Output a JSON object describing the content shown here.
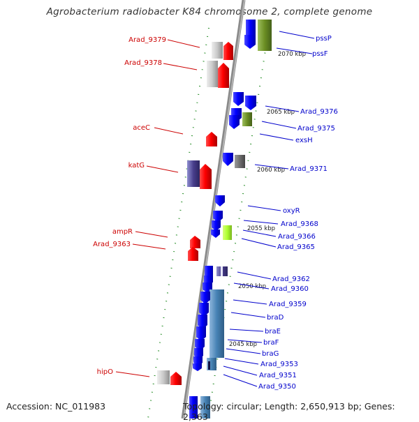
{
  "title": "Agrobacterium radiobacter K84 chromosome 2, complete genome",
  "footer": {
    "accession": "Accession: NC_011983",
    "topology": "Topology: circular; Length: 2,650,913 bp; Genes: 2,363"
  },
  "colors": {
    "left_label": "#cc0000",
    "right_label": "#0000cc",
    "backbone": "#8a8a8a",
    "tick": "#228b22",
    "cds_forward": "#ff0000",
    "cds_reverse": "#0000ff"
  },
  "kbp_markers": [
    "2070 kbp",
    "2065 kbp",
    "2060 kbp",
    "2055 kbp",
    "2050 kbp",
    "2045 kbp"
  ],
  "left_labels": [
    "Arad_9379",
    "Arad_9378",
    "aceC",
    "katG",
    "ampR",
    "Arad_9363",
    "hipO"
  ],
  "right_labels": [
    "pssP",
    "pssF",
    "Arad_9376",
    "Arad_9375",
    "exsH",
    "Arad_9371",
    "oxyR",
    "Arad_9368",
    "Arad_9366",
    "Arad_9365",
    "Arad_9362",
    "Arad_9360",
    "Arad_9359",
    "braD",
    "braE",
    "braF",
    "braG",
    "Arad_9353",
    "Arad_9351",
    "Arad_9350"
  ]
}
